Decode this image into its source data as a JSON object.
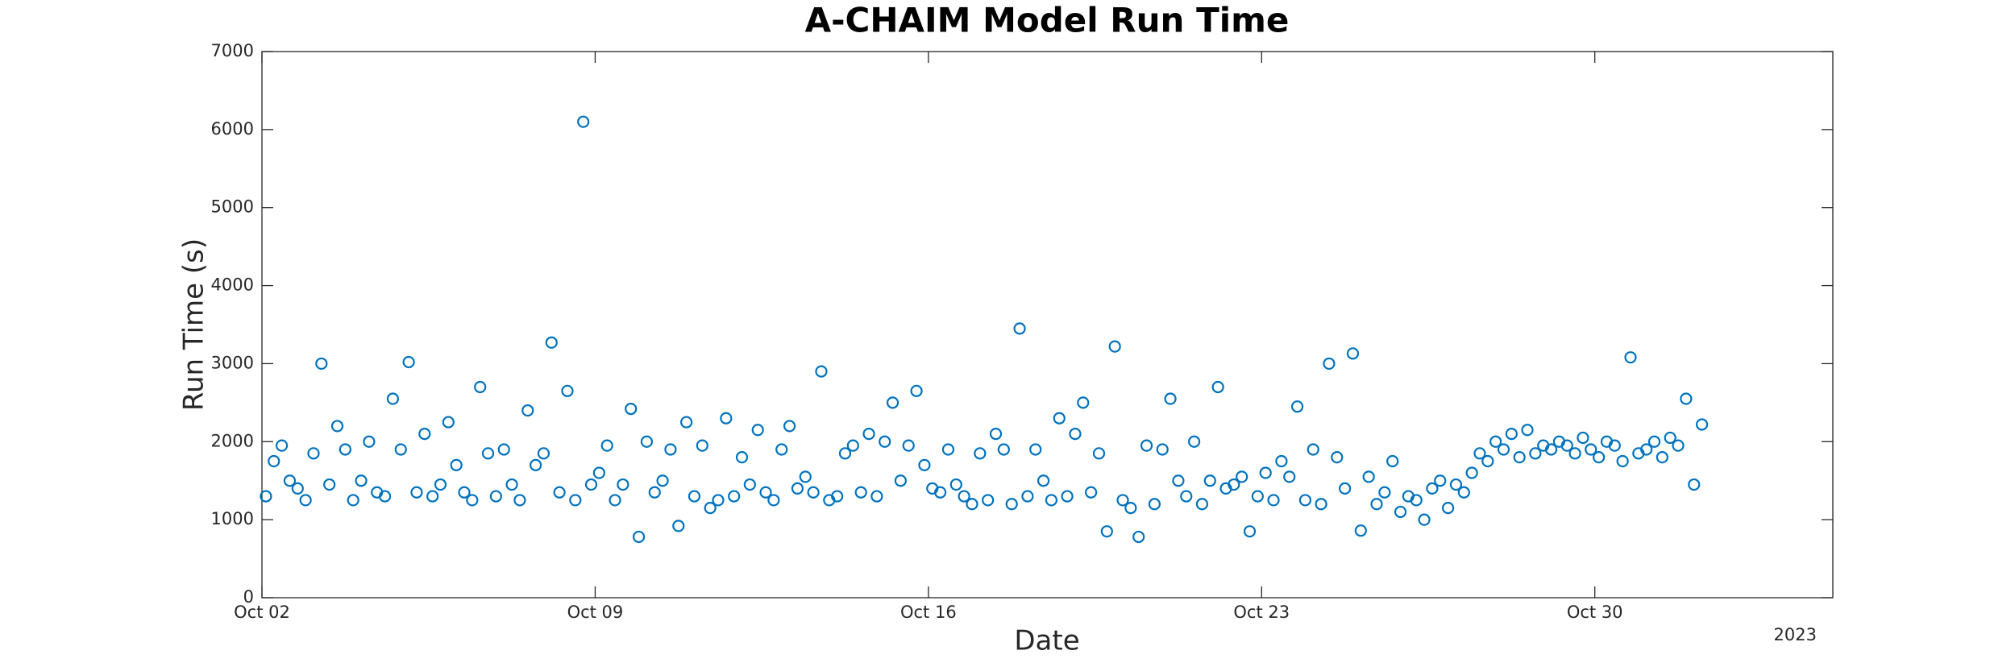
{
  "chart_data": {
    "type": "scatter",
    "title": "A-CHAIM Model Run Time",
    "xlabel": "Date",
    "ylabel": "Run Time (s)",
    "x_year_label": "2023",
    "color": "#0072BD",
    "marker": "circle-open",
    "xlim": [
      "2023-10-02",
      "2023-11-04"
    ],
    "xticks": [
      {
        "value": "2023-10-02",
        "label": "Oct 02"
      },
      {
        "value": "2023-10-09",
        "label": "Oct 09"
      },
      {
        "value": "2023-10-16",
        "label": "Oct 16"
      },
      {
        "value": "2023-10-23",
        "label": "Oct 23"
      },
      {
        "value": "2023-10-30",
        "label": "Oct 30"
      }
    ],
    "ylim": [
      0,
      7000
    ],
    "yticks": [
      0,
      1000,
      2000,
      3000,
      4000,
      5000,
      6000,
      7000
    ],
    "grid": false,
    "x": [
      "2023-10-02 02:00",
      "2023-10-02 06:00",
      "2023-10-02 10:00",
      "2023-10-02 14:00",
      "2023-10-02 18:00",
      "2023-10-02 22:00",
      "2023-10-03 02:00",
      "2023-10-03 06:00",
      "2023-10-03 10:00",
      "2023-10-03 14:00",
      "2023-10-03 18:00",
      "2023-10-03 22:00",
      "2023-10-04 02:00",
      "2023-10-04 06:00",
      "2023-10-04 10:00",
      "2023-10-04 14:00",
      "2023-10-04 18:00",
      "2023-10-04 22:00",
      "2023-10-05 02:00",
      "2023-10-05 06:00",
      "2023-10-05 10:00",
      "2023-10-05 14:00",
      "2023-10-05 18:00",
      "2023-10-05 22:00",
      "2023-10-06 02:00",
      "2023-10-06 06:00",
      "2023-10-06 10:00",
      "2023-10-06 14:00",
      "2023-10-06 18:00",
      "2023-10-06 22:00",
      "2023-10-07 02:00",
      "2023-10-07 06:00",
      "2023-10-07 10:00",
      "2023-10-07 14:00",
      "2023-10-07 18:00",
      "2023-10-07 22:00",
      "2023-10-08 02:00",
      "2023-10-08 06:00",
      "2023-10-08 10:00",
      "2023-10-08 14:00",
      "2023-10-08 18:00",
      "2023-10-08 22:00",
      "2023-10-09 02:00",
      "2023-10-09 06:00",
      "2023-10-09 10:00",
      "2023-10-09 14:00",
      "2023-10-09 18:00",
      "2023-10-09 22:00",
      "2023-10-10 02:00",
      "2023-10-10 06:00",
      "2023-10-10 10:00",
      "2023-10-10 14:00",
      "2023-10-10 18:00",
      "2023-10-10 22:00",
      "2023-10-11 02:00",
      "2023-10-11 06:00",
      "2023-10-11 10:00",
      "2023-10-11 14:00",
      "2023-10-11 18:00",
      "2023-10-11 22:00",
      "2023-10-12 02:00",
      "2023-10-12 06:00",
      "2023-10-12 10:00",
      "2023-10-12 14:00",
      "2023-10-12 18:00",
      "2023-10-12 22:00",
      "2023-10-13 02:00",
      "2023-10-13 06:00",
      "2023-10-13 10:00",
      "2023-10-13 14:00",
      "2023-10-13 18:00",
      "2023-10-13 22:00",
      "2023-10-14 02:00",
      "2023-10-14 06:00",
      "2023-10-14 10:00",
      "2023-10-14 14:00",
      "2023-10-14 18:00",
      "2023-10-14 22:00",
      "2023-10-15 02:00",
      "2023-10-15 06:00",
      "2023-10-15 10:00",
      "2023-10-15 14:00",
      "2023-10-15 18:00",
      "2023-10-15 22:00",
      "2023-10-16 02:00",
      "2023-10-16 06:00",
      "2023-10-16 10:00",
      "2023-10-16 14:00",
      "2023-10-16 18:00",
      "2023-10-16 22:00",
      "2023-10-17 02:00",
      "2023-10-17 06:00",
      "2023-10-17 10:00",
      "2023-10-17 14:00",
      "2023-10-17 18:00",
      "2023-10-17 22:00",
      "2023-10-18 02:00",
      "2023-10-18 06:00",
      "2023-10-18 10:00",
      "2023-10-18 14:00",
      "2023-10-18 18:00",
      "2023-10-18 22:00",
      "2023-10-19 02:00",
      "2023-10-19 06:00",
      "2023-10-19 10:00",
      "2023-10-19 14:00",
      "2023-10-19 18:00",
      "2023-10-19 22:00",
      "2023-10-20 02:00",
      "2023-10-20 06:00",
      "2023-10-20 10:00",
      "2023-10-20 14:00",
      "2023-10-20 18:00",
      "2023-10-20 22:00",
      "2023-10-21 02:00",
      "2023-10-21 06:00",
      "2023-10-21 10:00",
      "2023-10-21 14:00",
      "2023-10-21 18:00",
      "2023-10-21 22:00",
      "2023-10-22 02:00",
      "2023-10-22 06:00",
      "2023-10-22 10:00",
      "2023-10-22 14:00",
      "2023-10-22 18:00",
      "2023-10-22 22:00",
      "2023-10-23 02:00",
      "2023-10-23 06:00",
      "2023-10-23 10:00",
      "2023-10-23 14:00",
      "2023-10-23 18:00",
      "2023-10-23 22:00",
      "2023-10-24 02:00",
      "2023-10-24 06:00",
      "2023-10-24 10:00",
      "2023-10-24 14:00",
      "2023-10-24 18:00",
      "2023-10-24 22:00",
      "2023-10-25 02:00",
      "2023-10-25 06:00",
      "2023-10-25 10:00",
      "2023-10-25 14:00",
      "2023-10-25 18:00",
      "2023-10-25 22:00",
      "2023-10-26 02:00",
      "2023-10-26 06:00",
      "2023-10-26 10:00",
      "2023-10-26 14:00",
      "2023-10-26 18:00",
      "2023-10-26 22:00",
      "2023-10-27 02:00",
      "2023-10-27 06:00",
      "2023-10-27 10:00",
      "2023-10-27 14:00",
      "2023-10-27 18:00",
      "2023-10-27 22:00",
      "2023-10-28 02:00",
      "2023-10-28 06:00",
      "2023-10-28 10:00",
      "2023-10-28 14:00",
      "2023-10-28 18:00",
      "2023-10-28 22:00",
      "2023-10-29 02:00",
      "2023-10-29 06:00",
      "2023-10-29 10:00",
      "2023-10-29 14:00",
      "2023-10-29 18:00",
      "2023-10-29 22:00",
      "2023-10-30 02:00",
      "2023-10-30 06:00",
      "2023-10-30 10:00",
      "2023-10-30 14:00",
      "2023-10-30 18:00",
      "2023-10-30 22:00",
      "2023-10-31 02:00",
      "2023-10-31 06:00",
      "2023-10-31 10:00",
      "2023-10-31 14:00",
      "2023-10-31 18:00",
      "2023-10-31 22:00",
      "2023-11-01 02:00",
      "2023-11-01 06:00"
    ],
    "values": [
      1300,
      1750,
      1950,
      1500,
      1400,
      1250,
      1850,
      3000,
      1450,
      2200,
      1900,
      1250,
      1500,
      2000,
      1350,
      1300,
      2550,
      1900,
      3020,
      1350,
      2100,
      1300,
      1450,
      2250,
      1700,
      1350,
      1250,
      2700,
      1850,
      1300,
      1900,
      1450,
      1250,
      2400,
      1700,
      1850,
      3270,
      1350,
      2650,
      1250,
      6100,
      1450,
      1600,
      1950,
      1250,
      1450,
      2420,
      780,
      2000,
      1350,
      1500,
      1900,
      920,
      2250,
      1300,
      1950,
      1150,
      1250,
      2300,
      1300,
      1800,
      1450,
      2150,
      1350,
      1250,
      1900,
      2200,
      1400,
      1550,
      1350,
      2900,
      1250,
      1300,
      1850,
      1950,
      1350,
      2100,
      1300,
      2000,
      2500,
      1500,
      1950,
      2650,
      1700,
      1400,
      1350,
      1900,
      1450,
      1300,
      1200,
      1850,
      1250,
      2100,
      1900,
      1200,
      3450,
      1300,
      1900,
      1500,
      1250,
      2300,
      1300,
      2100,
      2500,
      1350,
      1850,
      850,
      3220,
      1250,
      1150,
      780,
      1950,
      1200,
      1900,
      2550,
      1500,
      1300,
      2000,
      1200,
      1500,
      2700,
      1400,
      1450,
      1550,
      850,
      1300,
      1600,
      1250,
      1750,
      1550,
      2450,
      1250,
      1900,
      1200,
      3000,
      1800,
      1400,
      3130,
      860,
      1550,
      1200,
      1350,
      1750,
      1100,
      1300,
      1250,
      1000,
      1400,
      1500,
      1150,
      1450,
      1350,
      1600,
      1850,
      1750,
      2000,
      1900,
      2100,
      1800,
      2150,
      1850,
      1950,
      1900,
      2000,
      1950,
      1850,
      2050,
      1900,
      1800,
      2000,
      1950,
      1750,
      3080,
      1850,
      1900,
      2000,
      1800,
      2050,
      1950,
      2550,
      1450,
      2220
    ]
  }
}
